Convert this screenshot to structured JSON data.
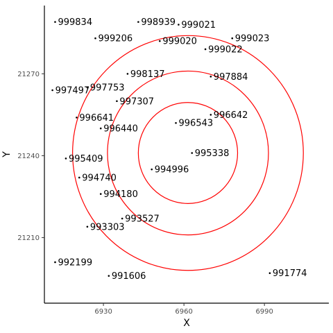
{
  "chart_data": {
    "type": "scatter",
    "title": "",
    "xlabel": "X",
    "ylabel": "Y",
    "xlim": [
      6908,
      7014
    ],
    "ylim": [
      21186,
      21295
    ],
    "x_ticks": [
      6930,
      6960,
      6990
    ],
    "y_ticks": [
      21210,
      21240,
      21270
    ],
    "grid": false,
    "legend": "none",
    "colors": {
      "points": "#000000",
      "circles": "#ff0000",
      "axis": "#000000",
      "tick_text": "#4d4d4d"
    },
    "circles": {
      "center": [
        6961.5,
        21241
      ],
      "radii": [
        18.5,
        30,
        43
      ]
    },
    "points": [
      {
        "label": "999834",
        "x": 6912,
        "y": 21289
      },
      {
        "label": "998939",
        "x": 6943,
        "y": 21289
      },
      {
        "label": "999021",
        "x": 6958,
        "y": 21288
      },
      {
        "label": "999206",
        "x": 6927,
        "y": 21283
      },
      {
        "label": "999020",
        "x": 6951,
        "y": 21282
      },
      {
        "label": "999023",
        "x": 6978,
        "y": 21283
      },
      {
        "label": "999022",
        "x": 6968,
        "y": 21279
      },
      {
        "label": "998137",
        "x": 6939,
        "y": 21270
      },
      {
        "label": "997884",
        "x": 6970,
        "y": 21269
      },
      {
        "label": "997497",
        "x": 6911,
        "y": 21264
      },
      {
        "label": "997753",
        "x": 6924,
        "y": 21265
      },
      {
        "label": "997307",
        "x": 6935,
        "y": 21260
      },
      {
        "label": "996641",
        "x": 6920,
        "y": 21254
      },
      {
        "label": "996642",
        "x": 6970,
        "y": 21255
      },
      {
        "label": "996543",
        "x": 6957,
        "y": 21252
      },
      {
        "label": "996440",
        "x": 6929,
        "y": 21250
      },
      {
        "label": "995338",
        "x": 6963,
        "y": 21241
      },
      {
        "label": "995409",
        "x": 6916,
        "y": 21239
      },
      {
        "label": "994996",
        "x": 6948,
        "y": 21235
      },
      {
        "label": "994740",
        "x": 6921,
        "y": 21232
      },
      {
        "label": "994180",
        "x": 6929,
        "y": 21226
      },
      {
        "label": "993527",
        "x": 6937,
        "y": 21217
      },
      {
        "label": "993303",
        "x": 6924,
        "y": 21214
      },
      {
        "label": "992199",
        "x": 6912,
        "y": 21201
      },
      {
        "label": "991774",
        "x": 6992,
        "y": 21197
      },
      {
        "label": "991606",
        "x": 6932,
        "y": 21196
      }
    ]
  }
}
